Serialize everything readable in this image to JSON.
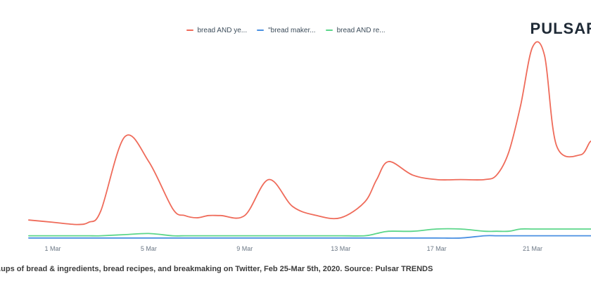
{
  "brand": {
    "logo_text": "PULSAR"
  },
  "caption": "...ups of bread & ingredients, bread recipes, and breakmaking on Twitter, Feb 25-Mar 5th, 2020. Source: Pulsar TRENDS",
  "chart_data": {
    "type": "line",
    "title": "",
    "xlabel": "",
    "ylabel": "",
    "grid": false,
    "legend_position": "top-center",
    "x_ticks": [
      "1 Mar",
      "5 Mar",
      "9 Mar",
      "13 Mar",
      "17 Mar",
      "21 Mar"
    ],
    "x": [
      -1.0,
      0.0,
      1.0,
      1.5,
      2.0,
      3.0,
      4.0,
      5.0,
      5.5,
      6.0,
      6.5,
      7.0,
      8.0,
      9.0,
      10.0,
      11.0,
      12.0,
      13.0,
      13.5,
      14.0,
      15.0,
      16.0,
      17.0,
      18.0,
      18.5,
      19.0,
      19.5,
      20.0,
      20.5,
      21.0,
      22.0,
      22.5,
      23.0,
      23.6
    ],
    "ylim": [
      0,
      100
    ],
    "series": [
      {
        "name": "bread AND ye...",
        "color": "#ef6b5a",
        "values": [
          9,
          8,
          7,
          8,
          13,
          46,
          35,
          14,
          11,
          10,
          11,
          11,
          11,
          27,
          15,
          11,
          10,
          17,
          27,
          35,
          29,
          27,
          27,
          27,
          29,
          39,
          60,
          86,
          82,
          42,
          38,
          44,
          30,
          26
        ]
      },
      {
        "name": "\"bread maker...",
        "color": "#4a90e2",
        "values": [
          1,
          1,
          1,
          1,
          1,
          1,
          1,
          1,
          1,
          1,
          1,
          1,
          1,
          1,
          1,
          1,
          1,
          1,
          1,
          1,
          1,
          1,
          1,
          2,
          2,
          2,
          2,
          2,
          2,
          2,
          2,
          2,
          2,
          2
        ]
      },
      {
        "name": "bread AND re...",
        "color": "#5bd68a",
        "values": [
          2,
          2,
          2,
          2,
          2,
          2.5,
          3,
          2,
          2,
          2,
          2,
          2,
          2,
          2,
          2,
          2,
          2,
          2,
          3,
          4,
          4,
          5,
          5,
          4,
          4,
          4,
          5,
          5,
          5,
          5,
          5,
          5,
          5,
          5
        ]
      }
    ]
  }
}
